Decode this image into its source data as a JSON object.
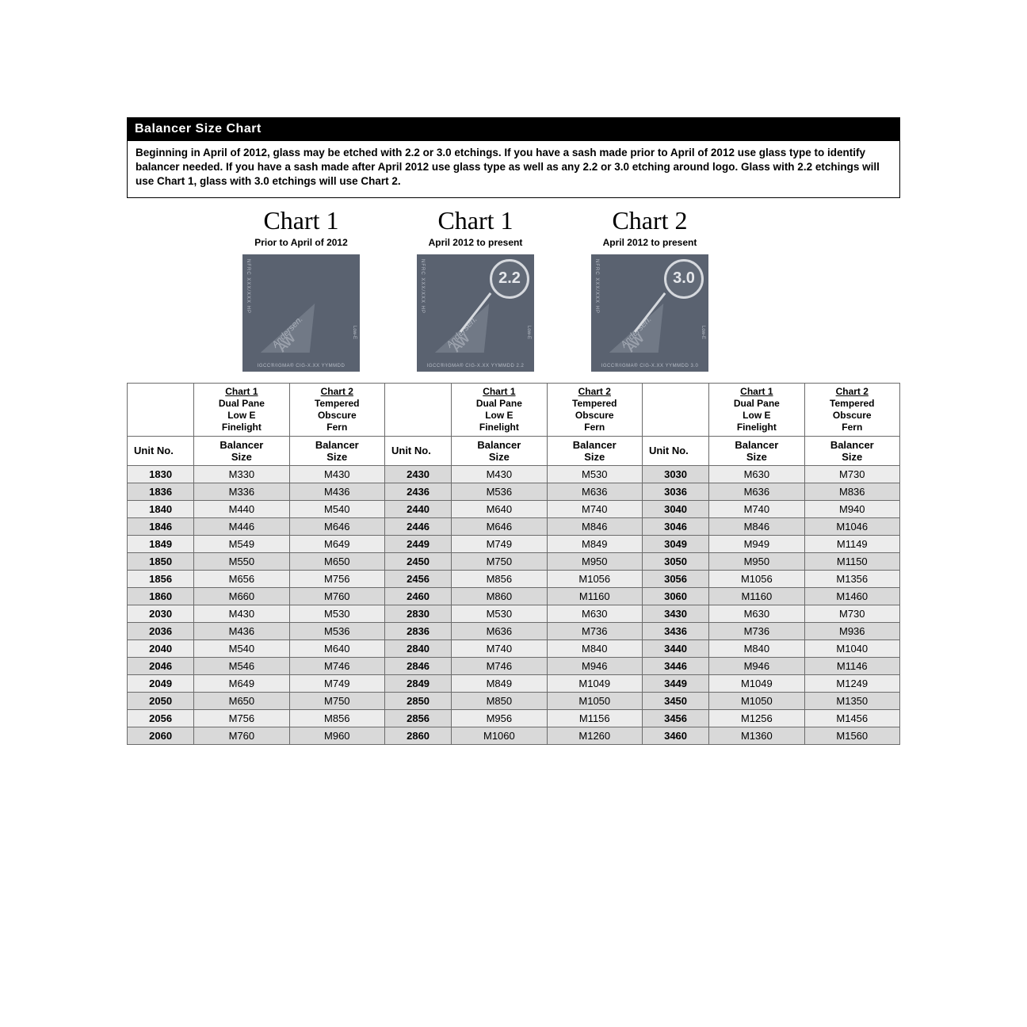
{
  "title": "Balancer Size Chart",
  "intro": "Beginning in April of 2012, glass may be etched with 2.2 or 3.0 etchings.  If you have a sash made prior to April of 2012 use glass type to identify balancer needed.  If you have a sash made after April 2012 use glass type as well as any 2.2 or 3.0 etching around logo. Glass with 2.2 etchings will use Chart 1, glass with 3.0 etchings will use Chart 2.",
  "chart_cols": [
    {
      "title": "Chart 1",
      "sub": "Prior to April of 2012",
      "badge": ""
    },
    {
      "title": "Chart 1",
      "sub": "April 2012 to present",
      "badge": "2.2"
    },
    {
      "title": "Chart 2",
      "sub": "April 2012 to present",
      "badge": "3.0"
    }
  ],
  "etch": {
    "side": "NFRC XXX/XXX HP",
    "right": "Low-E",
    "brand": "Andersen.",
    "aw": "AW",
    "bottom_plain": "IGCC®/IGMA® CIG-X.XX YYMMDD",
    "bottom_22": "IGCC®/IGMA® CIG-X.XX YYMMDD 2.2",
    "bottom_30": "IGCC®/IGMA® CIG-X.XX YYMMDD 3.0"
  },
  "headers": {
    "chart1_u": "Chart 1",
    "chart2_u": "Chart 2",
    "chart1_lines": "Dual Pane\nLow E\nFinelight",
    "chart2_lines": "Tempered\nObscure\nFern",
    "unit": "Unit No.",
    "bal": "Balancer\nSize"
  },
  "rows": [
    {
      "u1": "1830",
      "a1": "M330",
      "b1": "M430",
      "u2": "2430",
      "a2": "M430",
      "b2": "M530",
      "u3": "3030",
      "a3": "M630",
      "b3": "M730",
      "sh": "lt"
    },
    {
      "u1": "1836",
      "a1": "M336",
      "b1": "M436",
      "u2": "2436",
      "a2": "M536",
      "b2": "M636",
      "u3": "3036",
      "a3": "M636",
      "b3": "M836",
      "sh": "dk"
    },
    {
      "u1": "1840",
      "a1": "M440",
      "b1": "M540",
      "u2": "2440",
      "a2": "M640",
      "b2": "M740",
      "u3": "3040",
      "a3": "M740",
      "b3": "M940",
      "sh": "lt"
    },
    {
      "u1": "1846",
      "a1": "M446",
      "b1": "M646",
      "u2": "2446",
      "a2": "M646",
      "b2": "M846",
      "u3": "3046",
      "a3": "M846",
      "b3": "M1046",
      "sh": "dk"
    },
    {
      "u1": "1849",
      "a1": "M549",
      "b1": "M649",
      "u2": "2449",
      "a2": "M749",
      "b2": "M849",
      "u3": "3049",
      "a3": "M949",
      "b3": "M1149",
      "sh": "lt"
    },
    {
      "u1": "1850",
      "a1": "M550",
      "b1": "M650",
      "u2": "2450",
      "a2": "M750",
      "b2": "M950",
      "u3": "3050",
      "a3": "M950",
      "b3": "M1150",
      "sh": "dk"
    },
    {
      "u1": "1856",
      "a1": "M656",
      "b1": "M756",
      "u2": "2456",
      "a2": "M856",
      "b2": "M1056",
      "u3": "3056",
      "a3": "M1056",
      "b3": "M1356",
      "sh": "lt"
    },
    {
      "u1": "1860",
      "a1": "M660",
      "b1": "M760",
      "u2": "2460",
      "a2": "M860",
      "b2": "M1160",
      "u3": "3060",
      "a3": "M1160",
      "b3": "M1460",
      "sh": "dk"
    },
    {
      "u1": "2030",
      "a1": "M430",
      "b1": "M530",
      "u2": "2830",
      "a2": "M530",
      "b2": "M630",
      "u3": "3430",
      "a3": "M630",
      "b3": "M730",
      "sh": "lt"
    },
    {
      "u1": "2036",
      "a1": "M436",
      "b1": "M536",
      "u2": "2836",
      "a2": "M636",
      "b2": "M736",
      "u3": "3436",
      "a3": "M736",
      "b3": "M936",
      "sh": "dk"
    },
    {
      "u1": "2040",
      "a1": "M540",
      "b1": "M640",
      "u2": "2840",
      "a2": "M740",
      "b2": "M840",
      "u3": "3440",
      "a3": "M840",
      "b3": "M1040",
      "sh": "lt"
    },
    {
      "u1": "2046",
      "a1": "M546",
      "b1": "M746",
      "u2": "2846",
      "a2": "M746",
      "b2": "M946",
      "u3": "3446",
      "a3": "M946",
      "b3": "M1146",
      "sh": "dk"
    },
    {
      "u1": "2049",
      "a1": "M649",
      "b1": "M749",
      "u2": "2849",
      "a2": "M849",
      "b2": "M1049",
      "u3": "3449",
      "a3": "M1049",
      "b3": "M1249",
      "sh": "lt"
    },
    {
      "u1": "2050",
      "a1": "M650",
      "b1": "M750",
      "u2": "2850",
      "a2": "M850",
      "b2": "M1050",
      "u3": "3450",
      "a3": "M1050",
      "b3": "M1350",
      "sh": "dk"
    },
    {
      "u1": "2056",
      "a1": "M756",
      "b1": "M856",
      "u2": "2856",
      "a2": "M956",
      "b2": "M1156",
      "u3": "3456",
      "a3": "M1256",
      "b3": "M1456",
      "sh": "lt"
    },
    {
      "u1": "2060",
      "a1": "M760",
      "b1": "M960",
      "u2": "2860",
      "a2": "M1060",
      "b2": "M1260",
      "u3": "3460",
      "a3": "M1360",
      "b3": "M1560",
      "sh": "dk"
    }
  ],
  "colors": {
    "title_bg": "#000000",
    "title_fg": "#ffffff",
    "etch_bg": "#5a6270",
    "row_lt": "#ececec",
    "row_dk": "#d9d9d9",
    "border": "#6b6b6b"
  }
}
